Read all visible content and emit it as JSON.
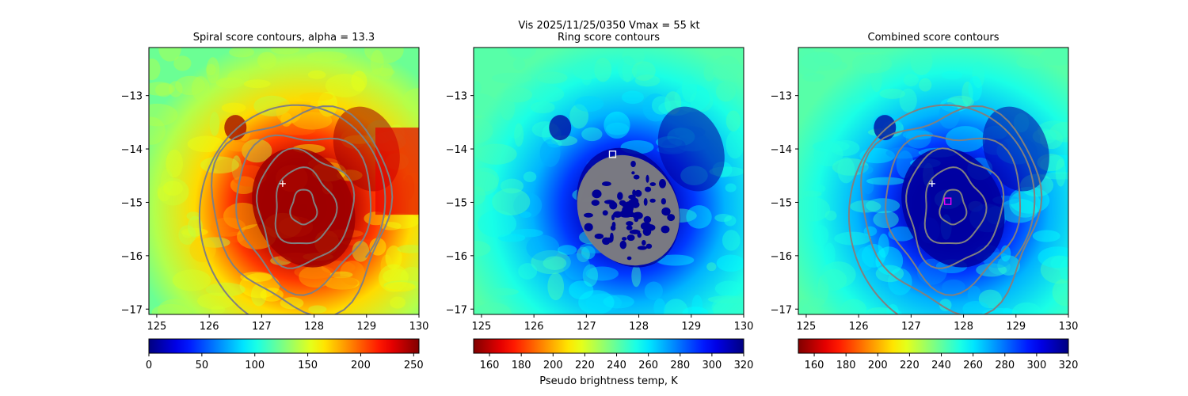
{
  "figure": {
    "suptitle_line1": "Vis  2025/11/25/0350    Vmax = 55 kt"
  },
  "colors": {
    "contour": "#808080",
    "center_marker": "#ffffff",
    "square_marker": "#ffffff",
    "square_marker_alt": "#ff00ff",
    "colormap": "jet"
  },
  "chart_data": [
    {
      "type": "heatmap",
      "title": "Spiral score contours, alpha = 13.3",
      "xlim": [
        124.85,
        130.0
      ],
      "ylim": [
        -17.1,
        -12.1
      ],
      "xticks": [
        "125",
        "126",
        "127",
        "128",
        "129",
        "130"
      ],
      "xtick_values": [
        125,
        126,
        127,
        128,
        129,
        130
      ],
      "yticks": [
        "−13",
        "−14",
        "−15",
        "−16",
        "−17"
      ],
      "ytick_values": [
        -13,
        -14,
        -15,
        -16,
        -17
      ],
      "colormap": "jet",
      "colorbar": {
        "min": 0,
        "max": 255,
        "reversed": false,
        "ticks": [
          "0",
          "50",
          "100",
          "150",
          "200",
          "250"
        ],
        "tick_values": [
          0,
          50,
          100,
          150,
          200,
          250
        ],
        "label": ""
      },
      "center": [
        127.8,
        -15.1
      ],
      "markers": [
        {
          "shape": "plus",
          "lon": 127.4,
          "lat": -14.65,
          "color": "#ffffff"
        }
      ],
      "contour_style": "spiral"
    },
    {
      "type": "heatmap",
      "title": "Ring score contours",
      "xlim": [
        124.85,
        130.0
      ],
      "ylim": [
        -17.1,
        -12.1
      ],
      "xticks": [
        "125",
        "126",
        "127",
        "128",
        "129",
        "130"
      ],
      "xtick_values": [
        125,
        126,
        127,
        128,
        129,
        130
      ],
      "yticks": [
        "−13",
        "−14",
        "−15",
        "−16",
        "−17"
      ],
      "ytick_values": [
        -13,
        -14,
        -15,
        -16,
        -17
      ],
      "colormap": "jet_r",
      "colorbar": {
        "min": 150,
        "max": 320,
        "reversed": true,
        "ticks": [
          "160",
          "180",
          "200",
          "220",
          "240",
          "260",
          "280",
          "300",
          "320"
        ],
        "tick_values": [
          160,
          180,
          200,
          220,
          240,
          260,
          280,
          300,
          320
        ],
        "label": "Pseudo brightness temp, K"
      },
      "center": [
        127.8,
        -15.1
      ],
      "markers": [
        {
          "shape": "square",
          "lon": 127.5,
          "lat": -14.1,
          "color": "#ffffff"
        }
      ],
      "contour_style": "ring"
    },
    {
      "type": "heatmap",
      "title": "Combined score contours",
      "xlim": [
        124.85,
        130.0
      ],
      "ylim": [
        -17.1,
        -12.1
      ],
      "xticks": [
        "125",
        "126",
        "127",
        "128",
        "129",
        "130"
      ],
      "xtick_values": [
        125,
        126,
        127,
        128,
        129,
        130
      ],
      "yticks": [
        "−13",
        "−14",
        "−15",
        "−16",
        "−17"
      ],
      "ytick_values": [
        -13,
        -14,
        -15,
        -16,
        -17
      ],
      "colormap": "jet_r",
      "colorbar": {
        "min": 150,
        "max": 320,
        "reversed": true,
        "ticks": [
          "160",
          "180",
          "200",
          "220",
          "240",
          "260",
          "280",
          "300",
          "320"
        ],
        "tick_values": [
          160,
          180,
          200,
          220,
          240,
          260,
          280,
          300,
          320
        ],
        "label": ""
      },
      "center": [
        127.8,
        -15.1
      ],
      "markers": [
        {
          "shape": "plus",
          "lon": 127.4,
          "lat": -14.65,
          "color": "#ffffff"
        },
        {
          "shape": "square",
          "lon": 127.7,
          "lat": -14.98,
          "color": "#ff00ff"
        }
      ],
      "contour_style": "combined"
    }
  ]
}
